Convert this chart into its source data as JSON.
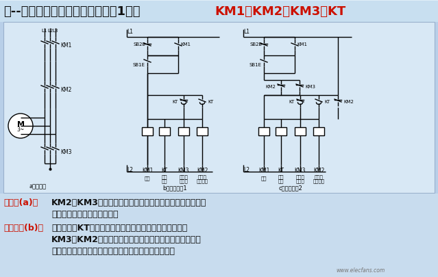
{
  "title_black": "星--三角变换减压起动控制电路（1）：",
  "title_red": "KM1、KM2、KM3、KT",
  "bg_color": "#b8cfe8",
  "title_bg": "#c8dff0",
  "diagram_bg": "#d0e4f4",
  "bottom_bg": "#c0d8ec",
  "text_black": "#111111",
  "text_red": "#cc1100",
  "label_a": "a）主电路",
  "label_b": "b）控制电路1",
  "label_c": "c）控制电路2",
  "desc1_label": "主电路(a)：",
  "desc1_line1": "KM2与KM3的主触点同时闭合，会造成电源短路，控制电路",
  "desc1_line2": "必须能够避免这种情况发生。",
  "desc2_label": "控制电路(b)：",
  "desc2_line1": "时间继电器KT的延时动断触点和延时动合触点似乎不会使",
  "desc2_line2": "KM3和KM2的线圈同时得电，但是，接触器的吸合时间和",
  "desc2_line3": "释放时间的离散性使得电路的工作状态存在不确定性。",
  "watermark": "www.elecfans.com"
}
